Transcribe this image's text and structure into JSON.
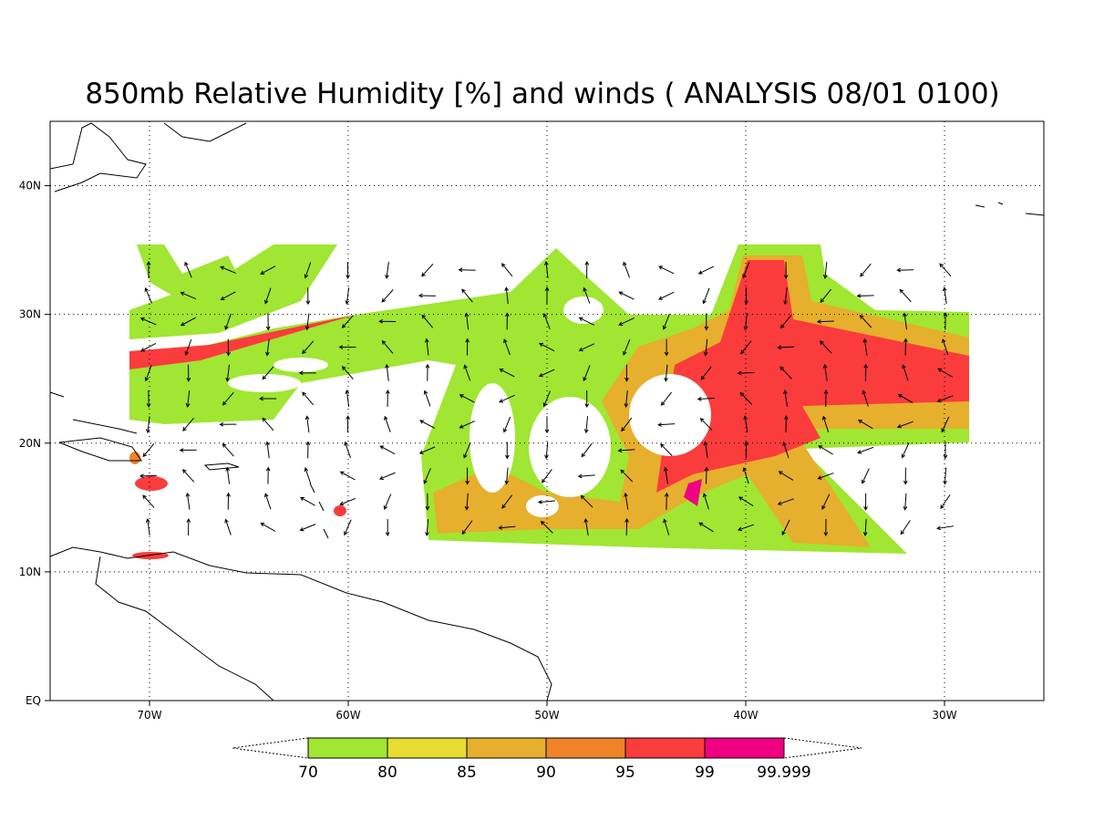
{
  "chart_data": {
    "type": "map",
    "title": "850mb Relative Humidity [%] and winds ( ANALYSIS 08/01 0100)",
    "xlim": [
      -75,
      -25
    ],
    "ylim": [
      0,
      45
    ],
    "xticks": [
      {
        "value": -70,
        "label": "70W"
      },
      {
        "value": -60,
        "label": "60W"
      },
      {
        "value": -50,
        "label": "50W"
      },
      {
        "value": -40,
        "label": "40W"
      },
      {
        "value": -30,
        "label": "30W"
      }
    ],
    "yticks": [
      {
        "value": 0,
        "label": "EQ"
      },
      {
        "value": 10,
        "label": "10N"
      },
      {
        "value": 20,
        "label": "20N"
      },
      {
        "value": 30,
        "label": "30N"
      },
      {
        "value": 40,
        "label": "40N"
      }
    ],
    "grid": true,
    "colorbar": {
      "levels": [
        70,
        80,
        85,
        90,
        95,
        99,
        99.999
      ],
      "colors": [
        "#a0e632",
        "#e6dc32",
        "#e6af2d",
        "#f08228",
        "#fa3c3c",
        "#f00082"
      ]
    }
  }
}
